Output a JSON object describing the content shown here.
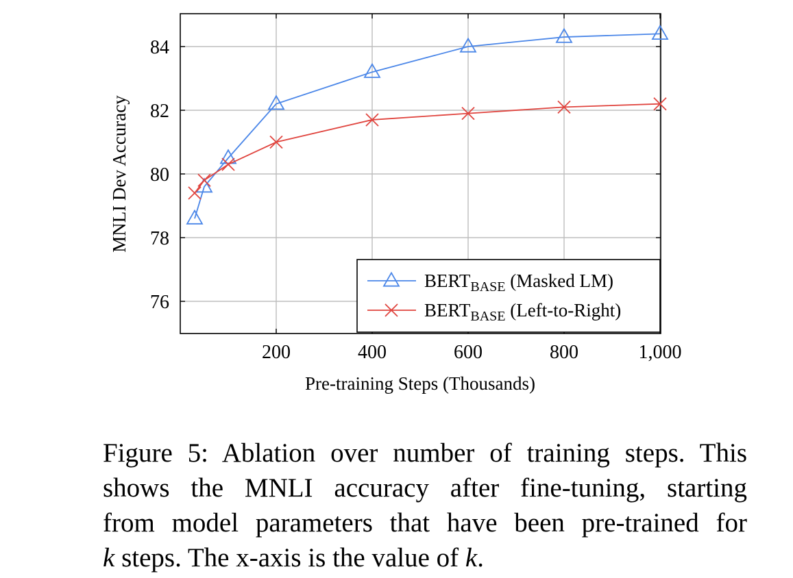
{
  "chart_data": {
    "type": "line",
    "xlabel": "Pre-training Steps (Thousands)",
    "ylabel": "MNLI Dev Accuracy",
    "xlim": [
      0,
      1000
    ],
    "ylim": [
      75,
      85
    ],
    "x_ticks": [
      200,
      400,
      600,
      800,
      1000
    ],
    "x_tick_labels": [
      "200",
      "400",
      "600",
      "800",
      "1,000"
    ],
    "y_ticks": [
      76,
      78,
      80,
      82,
      84
    ],
    "y_tick_labels": [
      "76",
      "78",
      "80",
      "82",
      "84"
    ],
    "grid": true,
    "legend_position": "bottom-right",
    "series": [
      {
        "name": "BERTBASE (Masked LM)",
        "name_main": "BERT",
        "name_sub": "BASE",
        "name_suffix": " (Masked LM)",
        "color": "#4a86e8",
        "marker": "triangle",
        "x": [
          30,
          50,
          100,
          200,
          400,
          600,
          800,
          1000
        ],
        "y": [
          78.6,
          79.6,
          80.5,
          82.2,
          83.2,
          84.0,
          84.3,
          84.4
        ]
      },
      {
        "name": "BERTBASE (Left-to-Right)",
        "name_main": "BERT",
        "name_sub": "BASE",
        "name_suffix": " (Left-to-Right)",
        "color": "#e0443e",
        "marker": "cross",
        "x": [
          30,
          50,
          100,
          200,
          400,
          600,
          800,
          1000
        ],
        "y": [
          79.4,
          79.8,
          80.3,
          81.0,
          81.7,
          81.9,
          82.1,
          82.2
        ]
      }
    ]
  },
  "caption": {
    "line1": "Figure 5: Ablation over number of training steps. This",
    "line2": "shows the MNLI accuracy after fine-tuning, starting",
    "line3": "from model parameters that have been pre-trained for",
    "line4_var": "k",
    "line4_mid": " steps. The x-axis is the value of ",
    "line4_var2": "k",
    "line4_end": "."
  }
}
